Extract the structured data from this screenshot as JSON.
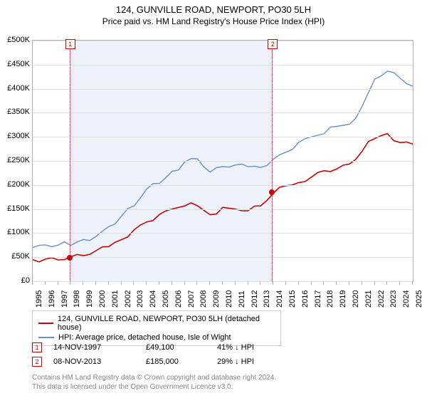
{
  "title": "124, GUNVILLE ROAD, NEWPORT, PO30 5LH",
  "subtitle": "Price paid vs. HM Land Registry's House Price Index (HPI)",
  "chart": {
    "type": "line",
    "x_years": [
      1995,
      1996,
      1997,
      1998,
      1999,
      2000,
      2001,
      2002,
      2003,
      2004,
      2005,
      2006,
      2007,
      2008,
      2009,
      2010,
      2011,
      2012,
      2013,
      2014,
      2015,
      2016,
      2017,
      2018,
      2019,
      2020,
      2021,
      2022,
      2023,
      2024,
      2025
    ],
    "ylim": [
      0,
      500
    ],
    "ytick_step": 50,
    "y_unit_prefix": "£",
    "y_unit_suffix": "K",
    "background_color": "#ffffff",
    "grid_color": "#e0e0e0",
    "border_color": "#b0b0b0",
    "band": {
      "from_year": 1997.9,
      "to_year": 2013.9,
      "color": "#eef3fb"
    },
    "series": [
      {
        "name": "124, GUNVILLE ROAD, NEWPORT, PO30 5LH (detached house)",
        "color": "#cc0000",
        "line_width": 1.6,
        "y": [
          45,
          46,
          48,
          49,
          55,
          60,
          72,
          90,
          105,
          125,
          135,
          150,
          160,
          155,
          140,
          150,
          150,
          150,
          155,
          185,
          195,
          205,
          220,
          228,
          235,
          240,
          270,
          300,
          305,
          290,
          285
        ]
      },
      {
        "name": "HPI: Average price, detached house, Isle of Wight",
        "color": "#6a8fc7",
        "line_width": 1.4,
        "y": [
          70,
          72,
          75,
          78,
          85,
          95,
          110,
          135,
          160,
          190,
          205,
          225,
          248,
          258,
          225,
          240,
          238,
          238,
          240,
          252,
          270,
          285,
          300,
          310,
          320,
          328,
          360,
          420,
          440,
          420,
          405
        ]
      }
    ],
    "markers": [
      {
        "num": "1",
        "year": 1997.9,
        "price": 49.1
      },
      {
        "num": "2",
        "year": 2013.9,
        "price": 185
      }
    ],
    "label_fontsize": 11,
    "title_fontsize": 13
  },
  "legend": {
    "items": [
      {
        "label": "124, GUNVILLE ROAD, NEWPORT, PO30 5LH (detached house)",
        "color": "#cc0000"
      },
      {
        "label": "HPI: Average price, detached house, Isle of Wight",
        "color": "#6a8fc7"
      }
    ]
  },
  "transactions": [
    {
      "num": "1",
      "date": "14-NOV-1997",
      "price": "£49,100",
      "diff": "41% ↓ HPI"
    },
    {
      "num": "2",
      "date": "08-NOV-2013",
      "price": "£185,000",
      "diff": "29% ↓ HPI"
    }
  ],
  "footer": {
    "line1": "Contains HM Land Registry data © Crown copyright and database right 2024.",
    "line2": "This data is licensed under the Open Government Licence v3.0."
  }
}
